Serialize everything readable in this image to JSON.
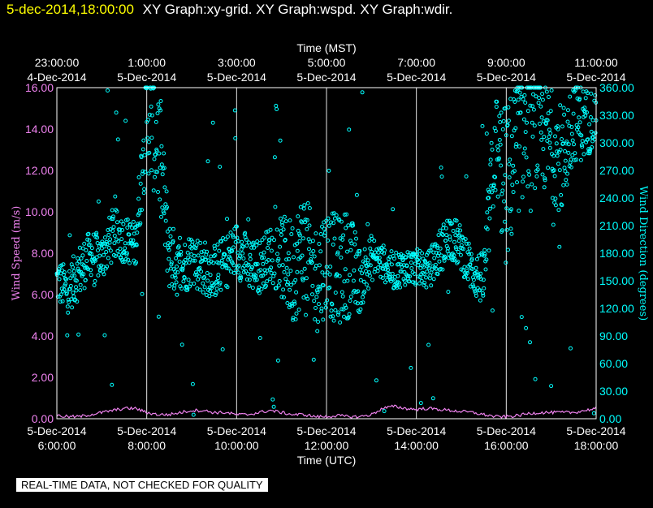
{
  "header": {
    "timestamp": "5-dec-2014,18:00:00",
    "titles": "XY Graph:xy-grid.  XY Graph:wspd.  XY Graph:wdir."
  },
  "footer": {
    "qc_notice": "REAL-TIME DATA, NOT CHECKED FOR QUALITY"
  },
  "colors": {
    "background": "#000000",
    "wspd": "#ee82ee",
    "wdir": "#00ffff",
    "grid": "#ffffff",
    "timestamp": "#ffff00"
  },
  "chart_data": {
    "type": "scatter",
    "title": "",
    "top_axis": {
      "title": "Time (MST)",
      "ticks": [
        {
          "x": 0,
          "l1": "23:00:00",
          "l2": "4-Dec-2014"
        },
        {
          "x": 2,
          "l1": "1:00:00",
          "l2": "5-Dec-2014"
        },
        {
          "x": 4,
          "l1": "3:00:00",
          "l2": "5-Dec-2014"
        },
        {
          "x": 6,
          "l1": "5:00:00",
          "l2": "5-Dec-2014"
        },
        {
          "x": 8,
          "l1": "7:00:00",
          "l2": "5-Dec-2014"
        },
        {
          "x": 10,
          "l1": "9:00:00",
          "l2": "5-Dec-2014"
        },
        {
          "x": 12,
          "l1": "11:00:00",
          "l2": "5-Dec-2014"
        }
      ]
    },
    "bottom_axis": {
      "title": "Time (UTC)",
      "ticks": [
        {
          "x": 0,
          "l1": "5-Dec-2014",
          "l2": "6:00:00"
        },
        {
          "x": 2,
          "l1": "5-Dec-2014",
          "l2": "8:00:00"
        },
        {
          "x": 4,
          "l1": "5-Dec-2014",
          "l2": "10:00:00"
        },
        {
          "x": 6,
          "l1": "5-Dec-2014",
          "l2": "12:00:00"
        },
        {
          "x": 8,
          "l1": "5-Dec-2014",
          "l2": "14:00:00"
        },
        {
          "x": 10,
          "l1": "5-Dec-2014",
          "l2": "16:00:00"
        },
        {
          "x": 12,
          "l1": "5-Dec-2014",
          "l2": "18:00:00"
        }
      ]
    },
    "xlim": [
      0,
      12
    ],
    "left_axis": {
      "title": "Wind Speed (m/s)",
      "ylim": [
        0,
        16
      ],
      "ticks": [
        "0.00",
        "2.00",
        "4.00",
        "6.00",
        "8.00",
        "10.00",
        "12.00",
        "14.00",
        "16.00"
      ]
    },
    "right_axis": {
      "title": "Wind Direction (degrees)",
      "ylim": [
        0,
        360
      ],
      "ticks": [
        "0.00",
        "30.00",
        "60.00",
        "90.00",
        "120.00",
        "150.00",
        "180.00",
        "210.00",
        "240.00",
        "270.00",
        "300.00",
        "330.00",
        "360.00"
      ]
    },
    "grid": "vertical",
    "series": [
      {
        "name": "Wind Speed (m/s)",
        "axis": "left",
        "color": "#ee82ee",
        "style": "line",
        "x": [
          0,
          0.25,
          0.5,
          0.75,
          1.0,
          1.25,
          1.5,
          1.75,
          2.0,
          2.25,
          2.5,
          2.75,
          3.0,
          3.25,
          3.5,
          3.75,
          4.0,
          4.25,
          4.5,
          4.75,
          5.0,
          5.25,
          5.5,
          5.75,
          6.0,
          6.25,
          6.5,
          6.75,
          7.0,
          7.25,
          7.5,
          7.75,
          8.0,
          8.25,
          8.5,
          8.75,
          9.0,
          9.25,
          9.5,
          9.75,
          10.0,
          10.25,
          10.5,
          10.75,
          11.0,
          11.25,
          11.5,
          11.75,
          12.0
        ],
        "values": [
          0.15,
          0.1,
          0.1,
          0.2,
          0.3,
          0.4,
          0.5,
          0.5,
          0.3,
          0.2,
          0.2,
          0.3,
          0.4,
          0.4,
          0.3,
          0.3,
          0.2,
          0.2,
          0.3,
          0.4,
          0.3,
          0.2,
          0.2,
          0.1,
          0.1,
          0.15,
          0.1,
          0.1,
          0.2,
          0.5,
          0.6,
          0.5,
          0.45,
          0.5,
          0.45,
          0.4,
          0.35,
          0.3,
          0.2,
          0.1,
          0.1,
          0.15,
          0.25,
          0.3,
          0.3,
          0.3,
          0.3,
          0.4,
          0.5
        ]
      },
      {
        "name": "Wind Direction (degrees)",
        "axis": "right",
        "color": "#00ffff",
        "style": "markers",
        "x": [
          0,
          0.25,
          0.5,
          0.75,
          1.0,
          1.25,
          1.5,
          1.75,
          2.0,
          2.25,
          2.5,
          2.75,
          3.0,
          3.25,
          3.5,
          3.75,
          4.0,
          4.25,
          4.5,
          4.75,
          5.0,
          5.25,
          5.5,
          5.75,
          6.0,
          6.25,
          6.5,
          6.75,
          7.0,
          7.25,
          7.5,
          7.75,
          8.0,
          8.25,
          8.5,
          8.75,
          9.0,
          9.25,
          9.5,
          9.75,
          10.0,
          10.25,
          10.5,
          10.75,
          11.0,
          11.25,
          11.5,
          11.75,
          12.0
        ],
        "values": [
          150,
          140,
          160,
          180,
          175,
          200,
          195,
          190,
          330,
          300,
          180,
          160,
          175,
          165,
          160,
          170,
          185,
          170,
          165,
          180,
          175,
          160,
          190,
          150,
          175,
          160,
          170,
          150,
          175,
          170,
          160,
          165,
          165,
          160,
          180,
          200,
          185,
          160,
          150,
          300,
          250,
          300,
          320,
          310,
          300,
          280,
          330,
          320,
          330
        ],
        "spread": [
          25,
          25,
          30,
          25,
          25,
          30,
          25,
          25,
          60,
          70,
          40,
          30,
          30,
          30,
          30,
          30,
          30,
          30,
          30,
          30,
          45,
          60,
          60,
          60,
          60,
          60,
          60,
          35,
          25,
          20,
          20,
          20,
          20,
          20,
          25,
          25,
          25,
          25,
          30,
          60,
          90,
          80,
          70,
          60,
          60,
          60,
          50,
          40,
          30
        ]
      }
    ]
  }
}
